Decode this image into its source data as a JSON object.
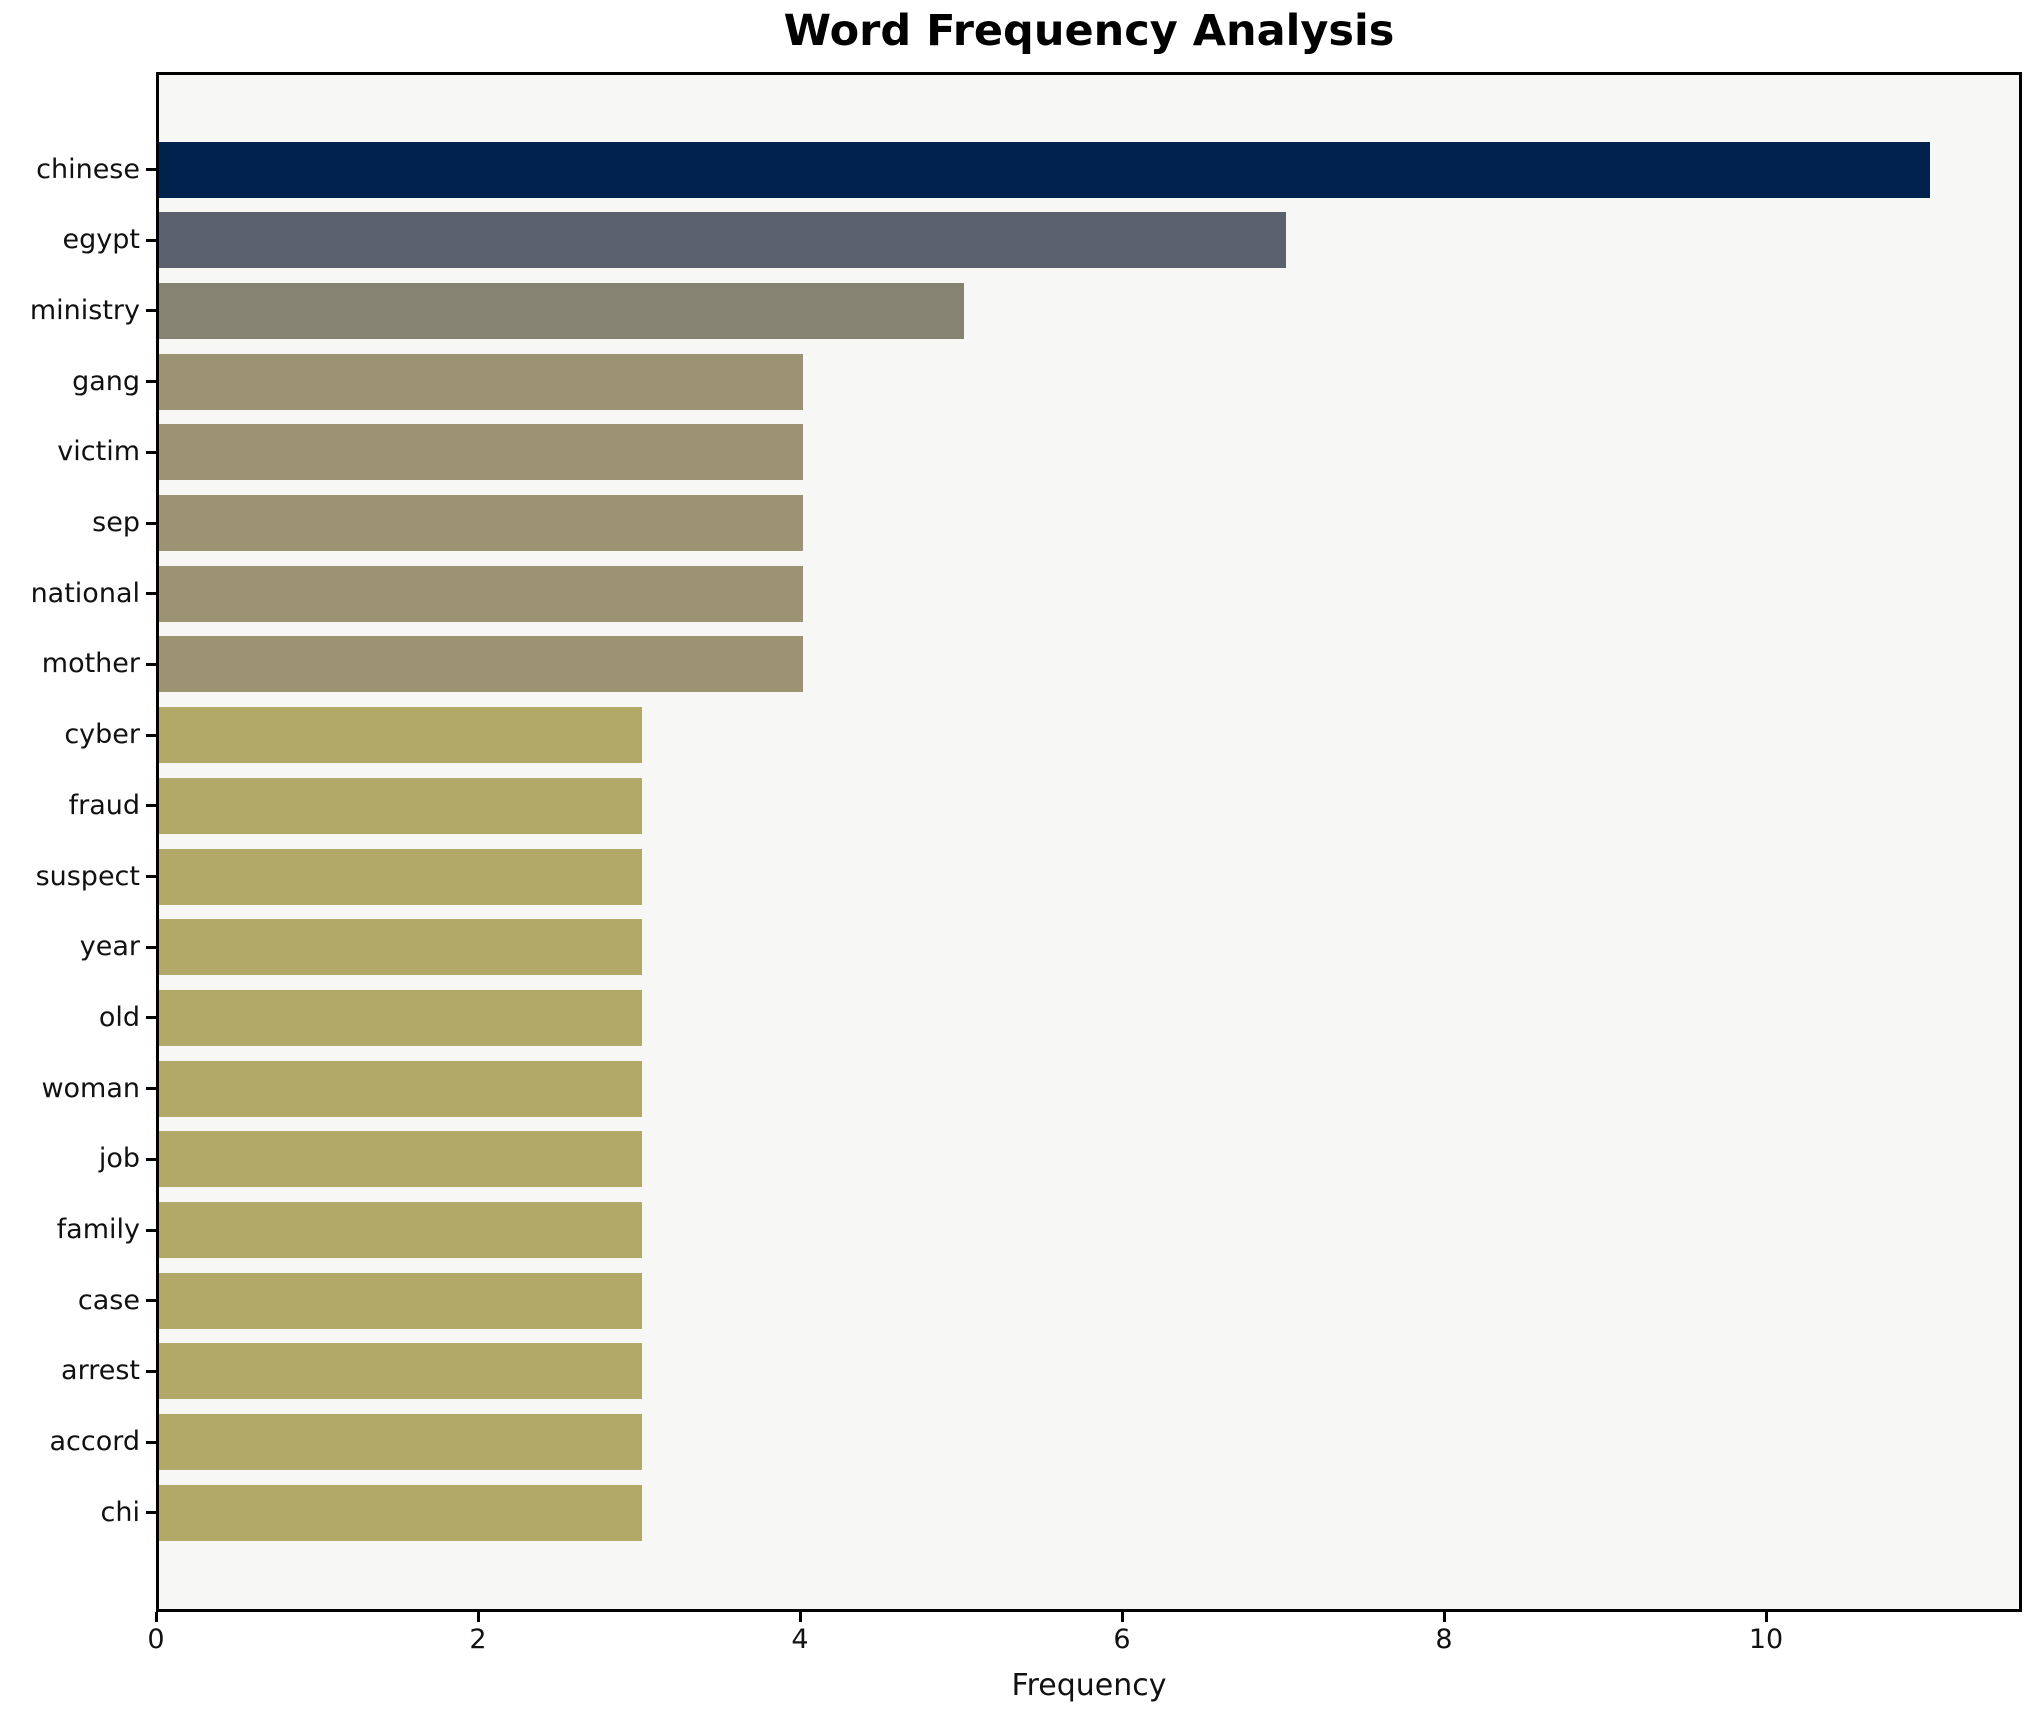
{
  "title": "Word Frequency Analysis",
  "xlabel": "Frequency",
  "colors": {
    "figure_bg": "#ffffff",
    "plot_bg": "#f7f7f5",
    "spine": "#000000",
    "text": "#111111"
  },
  "chart_data": {
    "type": "bar",
    "orientation": "horizontal",
    "title": "Word Frequency Analysis",
    "xlabel": "Frequency",
    "ylabel": "",
    "grid": false,
    "legend": null,
    "xlim": [
      0,
      11.6
    ],
    "xticks": [
      0,
      2,
      4,
      6,
      8,
      10
    ],
    "categories": [
      "chinese",
      "egypt",
      "ministry",
      "gang",
      "victim",
      "sep",
      "national",
      "mother",
      "cyber",
      "fraud",
      "suspect",
      "year",
      "old",
      "woman",
      "job",
      "family",
      "case",
      "arrest",
      "accord",
      "chi"
    ],
    "values": [
      11,
      7,
      5,
      4,
      4,
      4,
      4,
      4,
      3,
      3,
      3,
      3,
      3,
      3,
      3,
      3,
      3,
      3,
      3,
      3
    ],
    "bar_colors": [
      "#02224e",
      "#5c616e",
      "#868372",
      "#9c9372",
      "#9c9372",
      "#9c9372",
      "#9c9372",
      "#9c9372",
      "#b2a867",
      "#b2a867",
      "#b2a867",
      "#b2a867",
      "#b2a867",
      "#b2a867",
      "#b2a867",
      "#b2a867",
      "#b2a867",
      "#b2a867",
      "#b2a867",
      "#b2a867"
    ]
  }
}
